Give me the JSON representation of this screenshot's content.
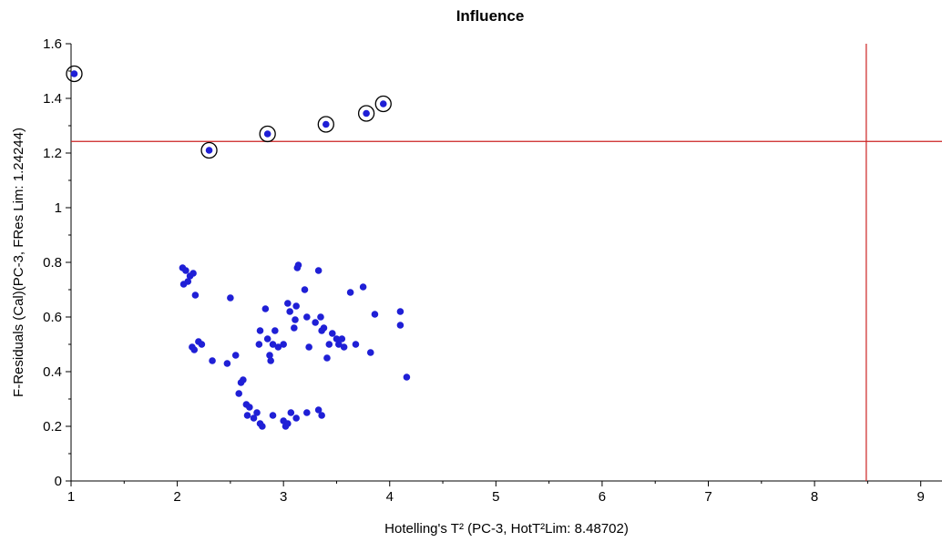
{
  "chart_data": {
    "type": "scatter",
    "title": "Influence",
    "xlabel": "Hotelling's T² (PC-3, HotT²Lim: 8.48702)",
    "ylabel": "F-Residuals (Cal)(PC-3, FRes Lim: 1.24244)",
    "xlim": [
      1,
      9.2
    ],
    "ylim": [
      0,
      1.6
    ],
    "xticks": [
      1,
      2,
      3,
      4,
      5,
      6,
      7,
      8,
      9
    ],
    "yticks": [
      0,
      0.2,
      0.4,
      0.6,
      0.8,
      1,
      1.2,
      1.4,
      1.6
    ],
    "grid": false,
    "limits": {
      "x": 8.48702,
      "y": 1.24244
    },
    "colors": {
      "points": "#1f1fd6",
      "limit_lines": "#cc2222",
      "axes": "#000000"
    },
    "outliers": [
      [
        1.03,
        1.49
      ],
      [
        2.3,
        1.21
      ],
      [
        2.85,
        1.27
      ],
      [
        3.4,
        1.305
      ],
      [
        3.78,
        1.345
      ],
      [
        3.94,
        1.38
      ]
    ],
    "points": [
      [
        2.05,
        0.78
      ],
      [
        2.08,
        0.77
      ],
      [
        2.12,
        0.75
      ],
      [
        2.15,
        0.76
      ],
      [
        2.06,
        0.72
      ],
      [
        2.1,
        0.73
      ],
      [
        2.17,
        0.68
      ],
      [
        2.14,
        0.49
      ],
      [
        2.16,
        0.48
      ],
      [
        2.2,
        0.51
      ],
      [
        2.23,
        0.5
      ],
      [
        2.33,
        0.44
      ],
      [
        2.47,
        0.43
      ],
      [
        2.5,
        0.67
      ],
      [
        2.55,
        0.46
      ],
      [
        2.58,
        0.32
      ],
      [
        2.6,
        0.36
      ],
      [
        2.62,
        0.37
      ],
      [
        2.65,
        0.28
      ],
      [
        2.68,
        0.27
      ],
      [
        2.66,
        0.24
      ],
      [
        2.72,
        0.23
      ],
      [
        2.75,
        0.25
      ],
      [
        2.78,
        0.21
      ],
      [
        2.8,
        0.2
      ],
      [
        2.9,
        0.24
      ],
      [
        3.0,
        0.22
      ],
      [
        3.02,
        0.2
      ],
      [
        3.04,
        0.21
      ],
      [
        3.07,
        0.25
      ],
      [
        3.12,
        0.23
      ],
      [
        3.22,
        0.25
      ],
      [
        3.33,
        0.26
      ],
      [
        3.36,
        0.24
      ],
      [
        2.78,
        0.55
      ],
      [
        2.77,
        0.5
      ],
      [
        2.83,
        0.63
      ],
      [
        2.85,
        0.52
      ],
      [
        2.87,
        0.46
      ],
      [
        2.88,
        0.44
      ],
      [
        2.9,
        0.5
      ],
      [
        2.92,
        0.55
      ],
      [
        2.95,
        0.49
      ],
      [
        3.0,
        0.5
      ],
      [
        3.04,
        0.65
      ],
      [
        3.06,
        0.62
      ],
      [
        3.1,
        0.56
      ],
      [
        3.11,
        0.59
      ],
      [
        3.12,
        0.64
      ],
      [
        3.13,
        0.78
      ],
      [
        3.14,
        0.79
      ],
      [
        3.2,
        0.7
      ],
      [
        3.22,
        0.6
      ],
      [
        3.24,
        0.49
      ],
      [
        3.3,
        0.58
      ],
      [
        3.33,
        0.77
      ],
      [
        3.35,
        0.6
      ],
      [
        3.36,
        0.55
      ],
      [
        3.38,
        0.56
      ],
      [
        3.41,
        0.45
      ],
      [
        3.43,
        0.5
      ],
      [
        3.46,
        0.54
      ],
      [
        3.5,
        0.52
      ],
      [
        3.52,
        0.5
      ],
      [
        3.55,
        0.52
      ],
      [
        3.57,
        0.49
      ],
      [
        3.63,
        0.69
      ],
      [
        3.68,
        0.5
      ],
      [
        3.75,
        0.71
      ],
      [
        3.82,
        0.47
      ],
      [
        3.86,
        0.61
      ],
      [
        4.1,
        0.62
      ],
      [
        4.1,
        0.57
      ],
      [
        4.16,
        0.38
      ]
    ]
  }
}
